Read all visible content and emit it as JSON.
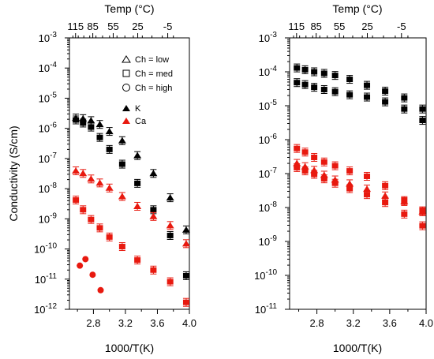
{
  "chart_data": [
    {
      "type": "scatter",
      "xlabel": "1000/T(K)",
      "ylabel": "Conductivity (S/cm)",
      "top_axis_label": "Temp (°C)",
      "xlim": [
        2.5,
        4.0
      ],
      "ylim_log10": [
        -12,
        -3
      ],
      "x_tick_labels": [
        "2.8",
        "3.2",
        "3.6",
        "4.0"
      ],
      "top_tick_labels": [
        "115",
        "85",
        "55",
        "25",
        "-5"
      ],
      "y_tick_labels": [
        "10-12",
        "10-11",
        "10-10",
        "10-9",
        "10-8",
        "10-7",
        "10-6",
        "10-5",
        "10-4",
        "10-3"
      ],
      "legend": {
        "position": "top-right",
        "entries": [
          "Ch = low",
          "Ch = med",
          "Ch = high",
          "K",
          "Ca"
        ]
      },
      "series": [
        {
          "name": "K, Ch = low",
          "marker": "triangle",
          "color": "#000000",
          "points": [
            [
              2.58,
              2.2e-06
            ],
            [
              2.67,
              2.1e-06
            ],
            [
              2.77,
              1.8e-06
            ],
            [
              2.88,
              1.35e-06
            ],
            [
              3.0,
              7.9e-07
            ],
            [
              3.16,
              3.9e-07
            ],
            [
              3.35,
              1.25e-07
            ],
            [
              3.55,
              3.2e-08
            ],
            [
              3.76,
              5e-09
            ],
            [
              3.96,
              4.3e-10
            ]
          ]
        },
        {
          "name": "K, Ch = med",
          "marker": "square",
          "color": "#000000",
          "points": [
            [
              2.58,
              1.9e-06
            ],
            [
              2.67,
              1.5e-06
            ],
            [
              2.77,
              1.1e-06
            ],
            [
              2.88,
              5e-07
            ],
            [
              3.0,
              2e-07
            ],
            [
              3.16,
              6.5e-08
            ],
            [
              3.35,
              1.5e-08
            ],
            [
              3.55,
              2e-09
            ],
            [
              3.76,
              2.8e-10
            ],
            [
              3.96,
              1.3e-11
            ]
          ]
        },
        {
          "name": "Ca, Ch = low",
          "marker": "triangle",
          "color": "#e8190f",
          "points": [
            [
              2.58,
              3.9e-08
            ],
            [
              2.67,
              3.2e-08
            ],
            [
              2.77,
              2.1e-08
            ],
            [
              2.88,
              1.55e-08
            ],
            [
              3.0,
              1.05e-08
            ],
            [
              3.16,
              5.5e-09
            ],
            [
              3.35,
              2.6e-09
            ],
            [
              3.55,
              1.2e-09
            ],
            [
              3.76,
              6e-10
            ],
            [
              3.96,
              1.5e-10
            ]
          ]
        },
        {
          "name": "Ca, Ch = med",
          "marker": "square",
          "color": "#e8190f",
          "points": [
            [
              2.58,
              4.2e-09
            ],
            [
              2.67,
              2e-09
            ],
            [
              2.77,
              9.5e-10
            ],
            [
              2.88,
              5e-10
            ],
            [
              3.0,
              2.5e-10
            ],
            [
              3.16,
              1.2e-10
            ],
            [
              3.35,
              4.3e-11
            ],
            [
              3.55,
              2e-11
            ],
            [
              3.76,
              8.2e-12
            ],
            [
              3.96,
              1.7e-12
            ]
          ]
        },
        {
          "name": "Ca, Ch = high",
          "marker": "circle",
          "color": "#e8190f",
          "points": [
            [
              2.63,
              2.8e-11
            ],
            [
              2.7,
              4.6e-11
            ],
            [
              2.79,
              1.4e-11
            ],
            [
              2.89,
              4.3e-12
            ]
          ]
        }
      ]
    },
    {
      "type": "scatter",
      "xlabel": "1000/T(K)",
      "ylabel": "",
      "top_axis_label": "Temp (°C)",
      "xlim": [
        2.5,
        4.0
      ],
      "ylim_log10": [
        -11,
        -3
      ],
      "x_tick_labels": [
        "2.8",
        "3.2",
        "3.6",
        "4.0"
      ],
      "top_tick_labels": [
        "115",
        "85",
        "55",
        "25",
        "-5"
      ],
      "y_tick_labels": [
        "10-11",
        "10-10",
        "10-9",
        "10-8",
        "10-7",
        "10-6",
        "10-5",
        "10-4",
        "10-3"
      ],
      "series": [
        {
          "name": "K, Ch = low",
          "marker": "square",
          "color": "#000000",
          "points": [
            [
              2.58,
              0.00013
            ],
            [
              2.67,
              0.000115
            ],
            [
              2.77,
              0.0001
            ],
            [
              2.88,
              9e-05
            ],
            [
              3.0,
              7.8e-05
            ],
            [
              3.16,
              6e-05
            ],
            [
              3.35,
              4e-05
            ],
            [
              3.55,
              2.7e-05
            ],
            [
              3.76,
              1.7e-05
            ],
            [
              3.96,
              8e-06
            ]
          ]
        },
        {
          "name": "K, Ch = med",
          "marker": "square",
          "color": "#000000",
          "points": [
            [
              2.58,
              4.8e-05
            ],
            [
              2.67,
              4.2e-05
            ],
            [
              2.77,
              3.5e-05
            ],
            [
              2.88,
              3e-05
            ],
            [
              3.0,
              2.6e-05
            ],
            [
              3.16,
              2.1e-05
            ],
            [
              3.35,
              1.8e-05
            ],
            [
              3.55,
              1.3e-05
            ],
            [
              3.76,
              8e-06
            ],
            [
              3.96,
              3.7e-06
            ]
          ]
        },
        {
          "name": "Ca, Ch = low",
          "marker": "square",
          "color": "#e8190f",
          "points": [
            [
              2.58,
              5.5e-07
            ],
            [
              2.67,
              4.3e-07
            ],
            [
              2.77,
              3e-07
            ],
            [
              2.88,
              2.2e-07
            ],
            [
              3.0,
              1.7e-07
            ],
            [
              3.16,
              1.2e-07
            ],
            [
              3.35,
              8.3e-08
            ],
            [
              3.55,
              4.4e-08
            ],
            [
              3.76,
              1.6e-08
            ],
            [
              3.96,
              8e-09
            ]
          ]
        },
        {
          "name": "Ca, Ch = med",
          "marker": "triangle",
          "color": "#e8190f",
          "points": [
            [
              2.58,
              2e-07
            ],
            [
              2.67,
              1.6e-07
            ],
            [
              2.77,
              1.25e-07
            ],
            [
              2.88,
              9e-08
            ],
            [
              3.0,
              6.5e-08
            ],
            [
              3.16,
              5e-08
            ],
            [
              3.35,
              3.5e-08
            ],
            [
              3.55,
              2.2e-08
            ],
            [
              3.76,
              1.5e-08
            ],
            [
              3.96,
              7.5e-09
            ]
          ]
        },
        {
          "name": "Ca, Ch = high",
          "marker": "square",
          "color": "#e8190f",
          "points": [
            [
              2.58,
              1.5e-07
            ],
            [
              2.67,
              1.2e-07
            ],
            [
              2.77,
              9.5e-08
            ],
            [
              2.88,
              7e-08
            ],
            [
              3.0,
              5.2e-08
            ],
            [
              3.16,
              3.6e-08
            ],
            [
              3.35,
              2.4e-08
            ],
            [
              3.55,
              1.4e-08
            ],
            [
              3.76,
              6.4e-09
            ],
            [
              3.96,
              2.9e-09
            ]
          ]
        }
      ]
    }
  ]
}
